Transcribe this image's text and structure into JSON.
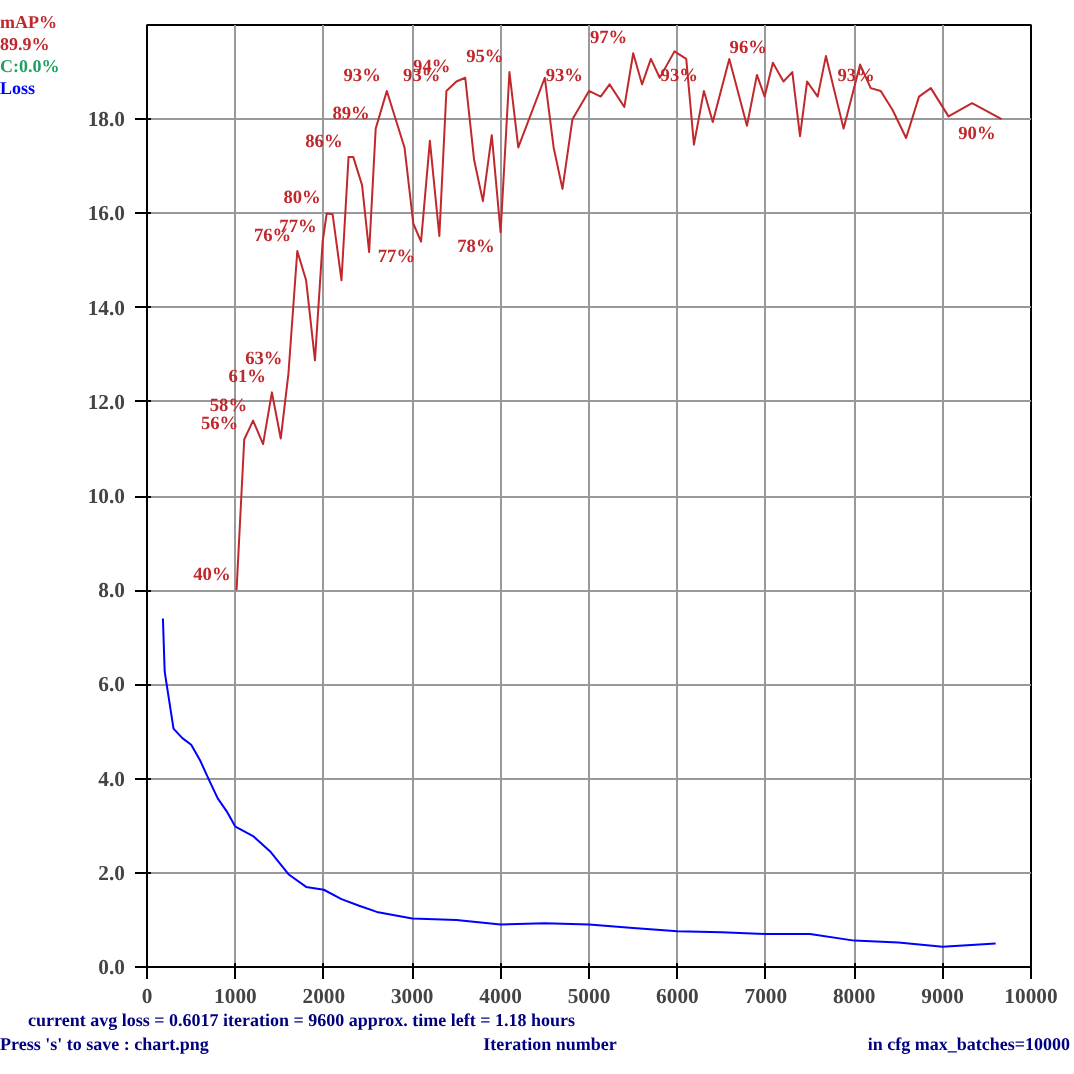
{
  "chart_data": {
    "type": "line",
    "xlabel": "Iteration number",
    "xlim": [
      0,
      10000
    ],
    "xticks": [
      0,
      1000,
      2000,
      3000,
      4000,
      5000,
      6000,
      7000,
      8000,
      9000,
      10000
    ],
    "ylim": [
      0,
      20
    ],
    "yticks": [
      {
        "value": 0,
        "label": "0.0"
      },
      {
        "value": 2,
        "label": "2.0"
      },
      {
        "value": 4,
        "label": "4.0"
      },
      {
        "value": 6,
        "label": "6.0"
      },
      {
        "value": 8,
        "label": "8.0"
      },
      {
        "value": 10,
        "label": "10.0"
      },
      {
        "value": 12,
        "label": "12.0"
      },
      {
        "value": 14,
        "label": "14.0"
      },
      {
        "value": 16,
        "label": "16.0"
      },
      {
        "value": 18,
        "label": "18.0"
      }
    ],
    "y2lim": [
      0,
      100
    ],
    "grid": true,
    "series": [
      {
        "name": "mAP%",
        "color": "#c0282c",
        "axis": "y2",
        "x": [
          1013,
          1100,
          1200,
          1313,
          1413,
          1513,
          1600,
          1700,
          1800,
          1900,
          1987,
          2033,
          2100,
          2200,
          2280,
          2333,
          2433,
          2513,
          2587,
          2713,
          2913,
          3013,
          3100,
          3200,
          3307,
          3387,
          3500,
          3600,
          3700,
          3800,
          3900,
          4000,
          4100,
          4200,
          4500,
          4600,
          4700,
          4813,
          5000,
          5133,
          5233,
          5400,
          5500,
          5600,
          5700,
          5800,
          5967,
          6100,
          6187,
          6300,
          6400,
          6587,
          6787,
          6900,
          6987,
          7080,
          7200,
          7300,
          7387,
          7467,
          7587,
          7680,
          7880,
          8067,
          8187,
          8300,
          8433,
          8587,
          8733,
          8867,
          9067,
          9333,
          9667
        ],
        "values": [
          40,
          56,
          58,
          55.5,
          61,
          56.1,
          63,
          76,
          72.9,
          64.4,
          77,
          80,
          79.9,
          72.9,
          86,
          86.0,
          83.0,
          75.9,
          89,
          93,
          87.0,
          78.9,
          77,
          87.7,
          77.6,
          93,
          94,
          94.4,
          85.7,
          81.3,
          88.3,
          78,
          95,
          87.0,
          94.4,
          87.0,
          82.6,
          90.0,
          93,
          92.4,
          93.7,
          91.3,
          97,
          93.7,
          96.4,
          94.4,
          97.2,
          96.4,
          87.3,
          93,
          89.7,
          96.4,
          89.3,
          94.7,
          92.4,
          96,
          94.0,
          95.0,
          88.2,
          94.0,
          92.4,
          96.7,
          89.0,
          95.8,
          93.3,
          93,
          91.0,
          88.0,
          92.4,
          93.3,
          90.3,
          91.7,
          90
        ],
        "value_labels": [
          "40%",
          "56%",
          "58%",
          null,
          "61%",
          null,
          "63%",
          "76%",
          null,
          null,
          "77%",
          "80%",
          null,
          null,
          "86%",
          null,
          null,
          null,
          "89%",
          "93%",
          null,
          null,
          "77%",
          null,
          null,
          "93%",
          "94%",
          null,
          null,
          null,
          null,
          "78%",
          "95%",
          null,
          null,
          null,
          null,
          null,
          "93%",
          null,
          null,
          null,
          "97%",
          null,
          null,
          null,
          null,
          null,
          null,
          "93%",
          null,
          null,
          null,
          null,
          null,
          "96%",
          null,
          null,
          null,
          null,
          null,
          null,
          null,
          null,
          null,
          "93%",
          null,
          null,
          null,
          null,
          null,
          null,
          "90%"
        ]
      },
      {
        "name": "Loss",
        "color": "#0000ff",
        "x": [
          180,
          200,
          300,
          400,
          500,
          600,
          700,
          800,
          900,
          1000,
          1200,
          1400,
          1600,
          1800,
          2000,
          2200,
          2400,
          2600,
          3000,
          3500,
          4000,
          4500,
          5000,
          5500,
          6000,
          6500,
          7000,
          7500,
          8000,
          8500,
          9000,
          9600
        ],
        "values": [
          7.4,
          6.27,
          5.06,
          4.86,
          4.72,
          4.39,
          3.98,
          3.58,
          3.31,
          2.98,
          2.78,
          2.44,
          1.97,
          1.7,
          1.64,
          1.44,
          1.3,
          1.17,
          1.03,
          1.0,
          0.9,
          0.93,
          0.9,
          0.83,
          0.76,
          0.74,
          0.7,
          0.7,
          0.56,
          0.52,
          0.43,
          0.5
        ]
      }
    ],
    "annotations": [
      "89.9%",
      "C:0.0%",
      "current avg loss = 0.6017    iteration = 9600    approx. time left = 1.18 hours",
      "Press 's' to save : chart.png",
      "in cfg max_batches=10000"
    ]
  }
}
